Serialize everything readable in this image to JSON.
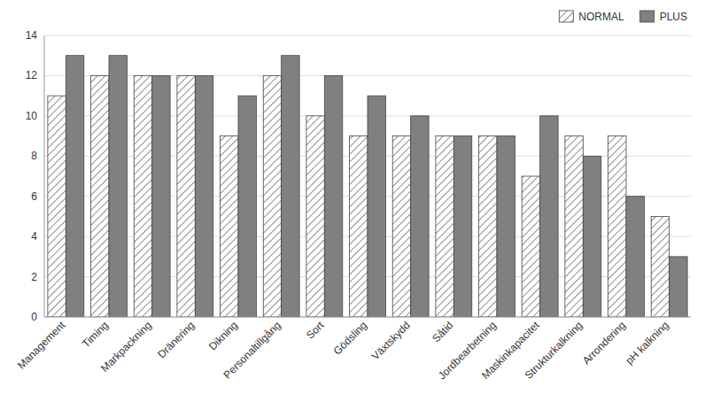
{
  "chart_data": {
    "type": "bar",
    "categories": [
      "Management",
      "Timing",
      "Markpackning",
      "Dränering",
      "Dikning",
      "Personaltillgång",
      "Sort",
      "Gödsling",
      "Växtskydd",
      "Såtid",
      "Jordbearbetning",
      "Maskinkapacitet",
      "Strukturkalkning",
      "Arrondering",
      "pH kalkning"
    ],
    "series": [
      {
        "name": "NORMAL",
        "color": "#ffffff",
        "values": [
          11,
          12,
          12,
          12,
          9,
          12,
          10,
          9,
          9,
          9,
          9,
          7,
          9,
          9,
          5
        ]
      },
      {
        "name": "PLUS",
        "color": "#808080",
        "values": [
          13,
          13,
          12,
          12,
          11,
          13,
          12,
          11,
          10,
          9,
          9,
          10,
          8,
          6,
          3
        ]
      }
    ],
    "ylim": [
      0,
      14
    ],
    "yticks": [
      0,
      2,
      4,
      6,
      8,
      10,
      12,
      14
    ],
    "grid": true,
    "legend": "upper right"
  }
}
